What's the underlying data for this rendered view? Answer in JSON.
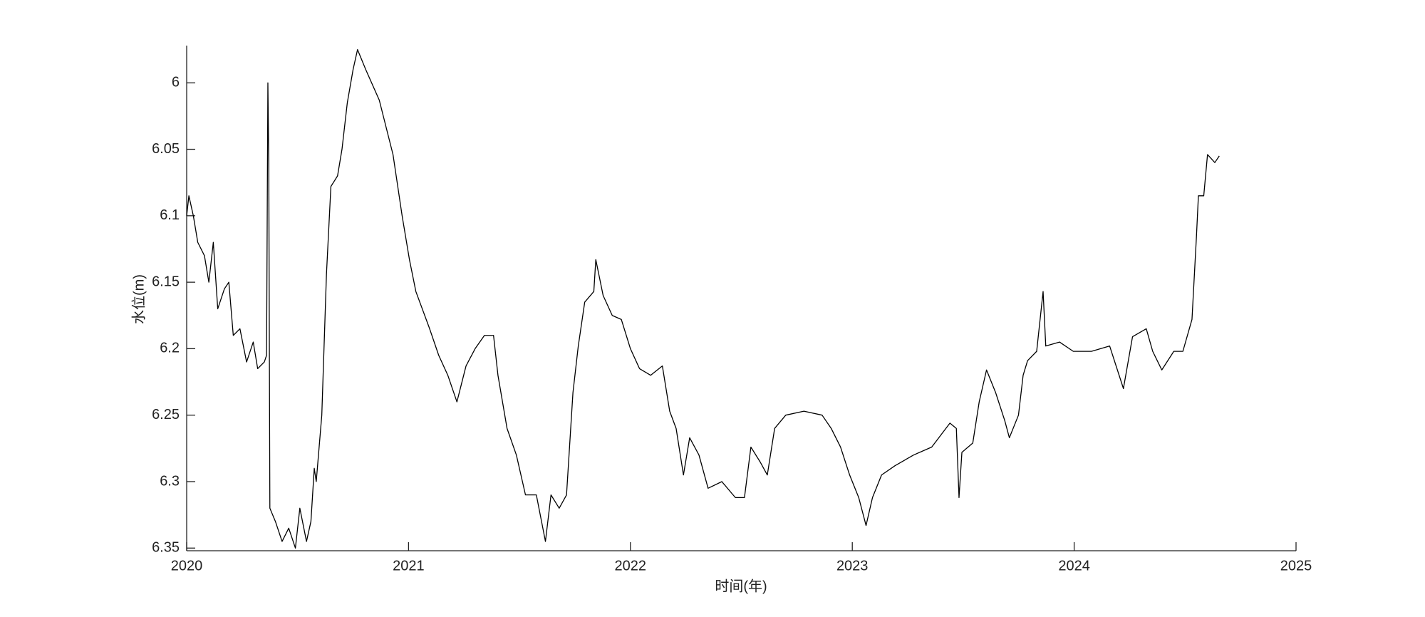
{
  "chart_data": {
    "type": "line",
    "xlabel": "时间(年)",
    "ylabel": "水位(m)",
    "color": "#000000",
    "x": [
      2020.0,
      2020.01,
      2020.03,
      2020.05,
      2020.08,
      2020.1,
      2020.12,
      2020.14,
      2020.17,
      2020.19,
      2020.21,
      2020.24,
      2020.27,
      2020.3,
      2020.32,
      2020.35,
      2020.36,
      2020.366,
      2020.37,
      2020.375,
      2020.4,
      2020.43,
      2020.46,
      2020.49,
      2020.51,
      2020.54,
      2020.56,
      2020.575,
      2020.584,
      2020.609,
      2020.63,
      2020.65,
      2020.68,
      2020.7,
      2020.724,
      2020.75,
      2020.77,
      2020.807,
      2020.868,
      2020.93,
      2020.971,
      2021.004,
      2021.033,
      2021.095,
      2021.136,
      2021.177,
      2021.218,
      2021.259,
      2021.3,
      2021.342,
      2021.383,
      2021.403,
      2021.444,
      2021.486,
      2021.527,
      2021.576,
      2021.617,
      2021.642,
      2021.679,
      2021.712,
      2021.741,
      2021.765,
      2021.794,
      2021.835,
      2021.844,
      2021.877,
      2021.918,
      2021.959,
      2022.0,
      2022.041,
      2022.091,
      2022.144,
      2022.177,
      2022.206,
      2022.239,
      2022.267,
      2022.309,
      2022.35,
      2022.412,
      2022.473,
      2022.514,
      2022.543,
      2022.584,
      2022.617,
      2022.65,
      2022.7,
      2022.782,
      2022.864,
      2022.905,
      2022.947,
      2022.988,
      2023.029,
      2023.062,
      2023.091,
      2023.132,
      2023.193,
      2023.276,
      2023.358,
      2023.44,
      2023.469,
      2023.481,
      2023.494,
      2023.543,
      2023.572,
      2023.605,
      2023.646,
      2023.687,
      2023.708,
      2023.749,
      2023.77,
      2023.79,
      2023.831,
      2023.86,
      2023.872,
      2023.934,
      2023.996,
      2024.078,
      2024.16,
      2024.222,
      2024.263,
      2024.325,
      2024.354,
      2024.395,
      2024.449,
      2024.49,
      2024.531,
      2024.551,
      2024.56,
      2024.584,
      2024.601,
      2024.634,
      2024.654
    ],
    "values": [
      6.1,
      6.085,
      6.1,
      6.12,
      6.13,
      6.15,
      6.12,
      6.17,
      6.155,
      6.15,
      6.19,
      6.185,
      6.21,
      6.195,
      6.215,
      6.21,
      6.205,
      6.0,
      6.06,
      6.32,
      6.33,
      6.345,
      6.335,
      6.35,
      6.32,
      6.345,
      6.33,
      6.29,
      6.3,
      6.25,
      6.144,
      6.078,
      6.07,
      6.05,
      6.015,
      5.99,
      5.975,
      5.99,
      6.013,
      6.054,
      6.1,
      6.133,
      6.157,
      6.185,
      6.205,
      6.22,
      6.24,
      6.213,
      6.2,
      6.19,
      6.19,
      6.22,
      6.26,
      6.28,
      6.31,
      6.31,
      6.345,
      6.31,
      6.32,
      6.31,
      6.233,
      6.198,
      6.165,
      6.157,
      6.133,
      6.16,
      6.175,
      6.178,
      6.2,
      6.215,
      6.22,
      6.213,
      6.247,
      6.26,
      6.295,
      6.267,
      6.28,
      6.305,
      6.3,
      6.312,
      6.312,
      6.274,
      6.285,
      6.295,
      6.26,
      6.25,
      6.247,
      6.25,
      6.26,
      6.274,
      6.295,
      6.312,
      6.333,
      6.312,
      6.295,
      6.288,
      6.28,
      6.274,
      6.256,
      6.26,
      6.312,
      6.278,
      6.271,
      6.24,
      6.216,
      6.233,
      6.254,
      6.267,
      6.25,
      6.22,
      6.209,
      6.202,
      6.157,
      6.198,
      6.195,
      6.202,
      6.202,
      6.198,
      6.23,
      6.191,
      6.185,
      6.202,
      6.216,
      6.202,
      6.202,
      6.178,
      6.116,
      6.085,
      6.085,
      6.054,
      6.06,
      6.055
    ],
    "xlim": [
      2020,
      2025
    ],
    "xticks": [
      2020,
      2021,
      2022,
      2023,
      2024,
      2025
    ],
    "ylim": [
      5.972,
      6.352
    ],
    "yticks": [
      6,
      6.05,
      6.1,
      6.15,
      6.2,
      6.25,
      6.3,
      6.35
    ],
    "yreverse": true
  }
}
